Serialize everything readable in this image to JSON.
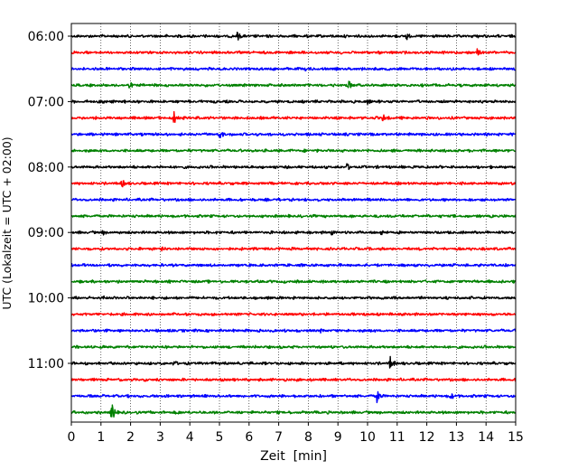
{
  "chart_data": {
    "type": "line",
    "title": "",
    "xlabel": "Zeit  [min]",
    "ylabel": "UTC (Lokalzeit = UTC + 02:00)",
    "xlim": [
      0,
      15
    ],
    "xticks": [
      "0",
      "1",
      "2",
      "3",
      "4",
      "5",
      "6",
      "7",
      "8",
      "9",
      "10",
      "11",
      "12",
      "13",
      "14",
      "15"
    ],
    "yticks": [
      "06:00",
      "07:00",
      "08:00",
      "09:00",
      "10:00",
      "11:00"
    ],
    "vertical_gridlines": true,
    "trace_interval_minutes": 15,
    "trace_colors": [
      "#000000",
      "#ff0000",
      "#0000ff",
      "#008000"
    ],
    "traces": [
      {
        "start": "06:00",
        "color": "#000000",
        "events": [
          {
            "t": 5.6,
            "amp": 0.8
          },
          {
            "t": 11.3,
            "amp": 0.8
          },
          {
            "t": 13.7,
            "amp": 0.35
          }
        ]
      },
      {
        "start": "06:15",
        "color": "#ff0000",
        "events": [
          {
            "t": 13.7,
            "amp": 0.65
          }
        ]
      },
      {
        "start": "06:30",
        "color": "#0000ff",
        "events": [
          {
            "t": 7.9,
            "amp": 0.3
          },
          {
            "t": 7.9,
            "amp": 0.35
          }
        ]
      },
      {
        "start": "06:45",
        "color": "#008000",
        "events": [
          {
            "t": 1.95,
            "amp": 0.7
          },
          {
            "t": 9.35,
            "amp": 0.85
          }
        ]
      },
      {
        "start": "07:00",
        "color": "#000000",
        "events": [
          {
            "t": 1.05,
            "amp": 0.55
          },
          {
            "t": 1.8,
            "amp": 0.3
          },
          {
            "t": 10.0,
            "amp": 0.55
          }
        ]
      },
      {
        "start": "07:15",
        "color": "#ff0000",
        "events": [
          {
            "t": 3.45,
            "amp": 1.2
          },
          {
            "t": 10.5,
            "amp": 0.75
          }
        ]
      },
      {
        "start": "07:30",
        "color": "#0000ff",
        "events": [
          {
            "t": 5.0,
            "amp": 0.9
          }
        ]
      },
      {
        "start": "07:45",
        "color": "#008000",
        "events": []
      },
      {
        "start": "08:00",
        "color": "#000000",
        "events": [
          {
            "t": 9.3,
            "amp": 0.65
          },
          {
            "t": 6.1,
            "amp": 0.25
          }
        ]
      },
      {
        "start": "08:15",
        "color": "#ff0000",
        "events": [
          {
            "t": 1.7,
            "amp": 0.8
          },
          {
            "t": 3.8,
            "amp": 0.3
          },
          {
            "t": 8.6,
            "amp": 0.25
          }
        ]
      },
      {
        "start": "08:30",
        "color": "#0000ff",
        "events": []
      },
      {
        "start": "08:45",
        "color": "#008000",
        "events": [
          {
            "t": 10.9,
            "amp": 0.35
          }
        ]
      },
      {
        "start": "09:00",
        "color": "#000000",
        "events": [
          {
            "t": 1.05,
            "amp": 0.55
          },
          {
            "t": 8.75,
            "amp": 0.65
          },
          {
            "t": 10.45,
            "amp": 0.6
          },
          {
            "t": 4.9,
            "amp": 0.3
          }
        ]
      },
      {
        "start": "09:15",
        "color": "#ff0000",
        "events": [
          {
            "t": 3.05,
            "amp": 0.35
          }
        ]
      },
      {
        "start": "09:30",
        "color": "#0000ff",
        "events": []
      },
      {
        "start": "09:45",
        "color": "#008000",
        "events": [
          {
            "t": 5.4,
            "amp": 0.35
          }
        ]
      },
      {
        "start": "10:00",
        "color": "#000000",
        "events": [
          {
            "t": 1.1,
            "amp": 0.4
          },
          {
            "t": 6.6,
            "amp": 0.3
          },
          {
            "t": 12.6,
            "amp": 0.3
          }
        ]
      },
      {
        "start": "10:15",
        "color": "#ff0000",
        "events": []
      },
      {
        "start": "10:30",
        "color": "#0000ff",
        "events": [
          {
            "t": 8.4,
            "amp": 0.45
          },
          {
            "t": 10.1,
            "amp": 0.4
          }
        ]
      },
      {
        "start": "10:45",
        "color": "#008000",
        "events": []
      },
      {
        "start": "11:00",
        "color": "#000000",
        "events": [
          {
            "t": 3.45,
            "amp": 0.7
          },
          {
            "t": 10.75,
            "amp": 1.3
          },
          {
            "t": 5.0,
            "amp": 0.25
          }
        ]
      },
      {
        "start": "11:15",
        "color": "#ff0000",
        "events": [
          {
            "t": 7.6,
            "amp": 0.3
          }
        ]
      },
      {
        "start": "11:30",
        "color": "#0000ff",
        "events": [
          {
            "t": 10.3,
            "amp": 1.2
          },
          {
            "t": 12.8,
            "amp": 0.7
          },
          {
            "t": 3.0,
            "amp": 0.3
          }
        ]
      },
      {
        "start": "11:45",
        "color": "#008000",
        "events": [
          {
            "t": 1.35,
            "amp": 1.6
          },
          {
            "t": 3.6,
            "amp": 0.4
          }
        ]
      }
    ]
  }
}
